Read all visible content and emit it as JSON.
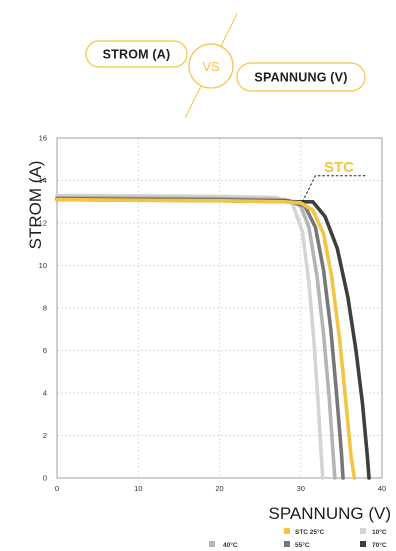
{
  "header": {
    "left_label": "STROM (A)",
    "vs_label": "VS",
    "right_label": "SPANNUNG (V)",
    "accent_color": "#f4c542"
  },
  "chart_data": {
    "type": "line",
    "xlabel": "SPANNUNG (V)",
    "ylabel": "STROM (A)",
    "xlim": [
      0,
      40
    ],
    "ylim": [
      0,
      16
    ],
    "x_ticks": [
      "0",
      "10",
      "20",
      "30",
      "40"
    ],
    "y_ticks": [
      "0",
      "2",
      "4",
      "6",
      "8",
      "10",
      "12",
      "14",
      "16"
    ],
    "grid": true,
    "legend_position": "bottom-right",
    "annotation": {
      "text": "STC",
      "point": [
        30.2,
        13.0
      ],
      "color": "#f4c542"
    },
    "series": [
      {
        "name": "STC 25°C",
        "color": "#f4c542",
        "points": [
          [
            0,
            13.1
          ],
          [
            10,
            13.07
          ],
          [
            20,
            13.05
          ],
          [
            28,
            13.0
          ],
          [
            30,
            12.95
          ],
          [
            31.5,
            12.6
          ],
          [
            32.8,
            11.5
          ],
          [
            33.8,
            9.5
          ],
          [
            34.8,
            6.5
          ],
          [
            35.5,
            3.8
          ],
          [
            36.2,
            1.0
          ],
          [
            36.6,
            0
          ]
        ]
      },
      {
        "name": "10°C",
        "color": "#d4d4d4",
        "points": [
          [
            0,
            13.3
          ],
          [
            10,
            13.28
          ],
          [
            20,
            13.25
          ],
          [
            27,
            13.2
          ],
          [
            29,
            12.9
          ],
          [
            30.2,
            11.6
          ],
          [
            31,
            9.2
          ],
          [
            31.6,
            6.5
          ],
          [
            32.1,
            3.8
          ],
          [
            32.5,
            1.2
          ],
          [
            32.7,
            0
          ]
        ]
      },
      {
        "name": "40°C",
        "color": "#b4b4b4",
        "points": [
          [
            0,
            13.2
          ],
          [
            10,
            13.18
          ],
          [
            20,
            13.15
          ],
          [
            28,
            13.1
          ],
          [
            30,
            12.8
          ],
          [
            31,
            11.8
          ],
          [
            32,
            9.5
          ],
          [
            32.8,
            6.8
          ],
          [
            33.5,
            3.8
          ],
          [
            34,
            1.0
          ],
          [
            34.2,
            0
          ]
        ]
      },
      {
        "name": "55°C",
        "color": "#777777",
        "points": [
          [
            0,
            13.15
          ],
          [
            10,
            13.12
          ],
          [
            20,
            13.1
          ],
          [
            28.5,
            13.05
          ],
          [
            30.5,
            12.8
          ],
          [
            31.8,
            11.8
          ],
          [
            32.8,
            9.8
          ],
          [
            33.7,
            7.0
          ],
          [
            34.4,
            4.0
          ],
          [
            35,
            1.2
          ],
          [
            35.2,
            0
          ]
        ]
      },
      {
        "name": "70°C",
        "color": "#3e3e3e",
        "points": [
          [
            0,
            13.1
          ],
          [
            10,
            13.08
          ],
          [
            20,
            13.05
          ],
          [
            30,
            13.0
          ],
          [
            31.5,
            13.0
          ],
          [
            33,
            12.3
          ],
          [
            34.5,
            10.8
          ],
          [
            35.8,
            8.5
          ],
          [
            36.8,
            6.0
          ],
          [
            37.6,
            3.5
          ],
          [
            38.2,
            1.0
          ],
          [
            38.4,
            0
          ]
        ]
      }
    ]
  }
}
